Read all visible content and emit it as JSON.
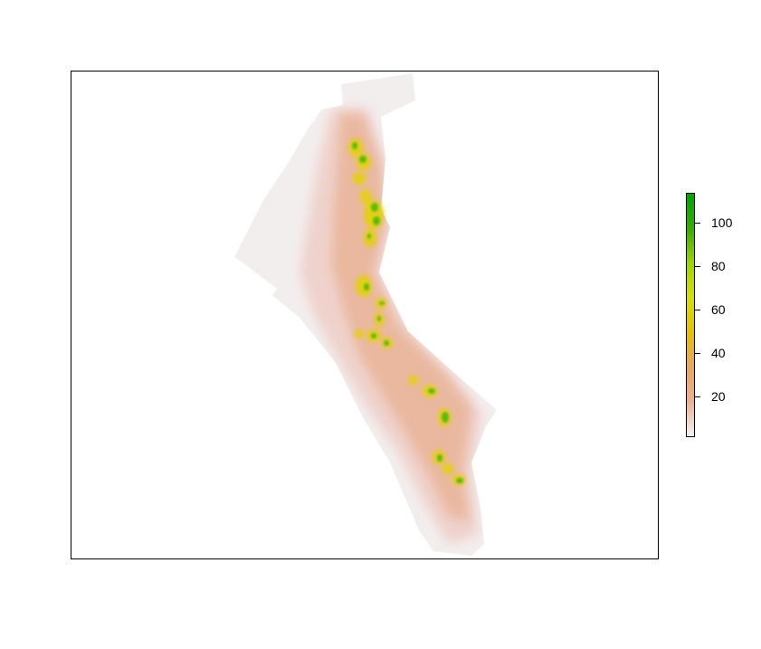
{
  "map": {
    "legend": {
      "min": 1,
      "max": 114,
      "ticks": [
        {
          "label": "20",
          "value": 20
        },
        {
          "label": "40",
          "value": 40
        },
        {
          "label": "60",
          "value": 60
        },
        {
          "label": "80",
          "value": 80
        },
        {
          "label": "100",
          "value": 100
        }
      ],
      "colors": [
        "#f2f2f2",
        "#ebb193",
        "#e8a65f",
        "#e6c100",
        "#d6df00",
        "#9fd300",
        "#35ad00",
        "#00a600"
      ]
    }
  }
}
